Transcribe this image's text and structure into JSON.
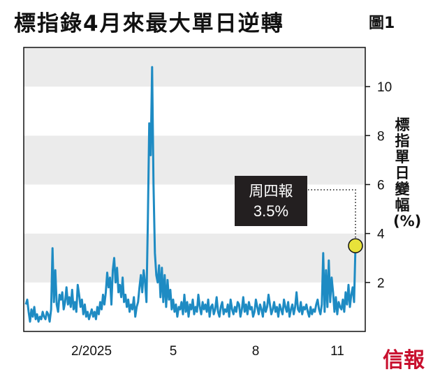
{
  "header": {
    "title": "標指錄4月來最大單日逆轉",
    "figure_label": "圖1"
  },
  "brand": {
    "logo_text": "信報",
    "color": "#c8102e"
  },
  "callout": {
    "line1": "周四報",
    "line2": "3.5%"
  },
  "colors": {
    "line": "#1e8bc3",
    "band": "#ebebeb",
    "marker": "#e8e23a"
  },
  "chart_data": {
    "type": "line",
    "title": "標指錄4月來最大單日逆轉",
    "ylabel": "標指單日變幅(%)",
    "ylim": [
      0,
      11.6
    ],
    "yticks": [
      2,
      4,
      6,
      8,
      10
    ],
    "x_ticks": [
      "2/2025",
      "5",
      "8",
      "11"
    ],
    "grid": "alternating horizontal bands",
    "series": [
      {
        "values": [
          1.1,
          1.3,
          0.8,
          0.4,
          0.9,
          0.6,
          1,
          0.5,
          0.7,
          0.4,
          0.6,
          0.5,
          0.8,
          0.6,
          0.5,
          0.8,
          0.7,
          0.4,
          0.9,
          3.4,
          1.2,
          2.5,
          1.1,
          0.8,
          1.5,
          1.3,
          1.6,
          0.9,
          1.2,
          1.8,
          1.1,
          1.4,
          1,
          1.7,
          0.9,
          1.2,
          0.8,
          1.9,
          1.5,
          1,
          1.3,
          0.7,
          1.1,
          0.6,
          0.8,
          0.5,
          0.7,
          0.9,
          0.6,
          0.8,
          0.5,
          1,
          0.7,
          1.2,
          0.9,
          1.5,
          1.1,
          1.6,
          2.4,
          1.8,
          2.2,
          1.1,
          2.5,
          3,
          2,
          2.6,
          1.6,
          1.9,
          1.4,
          2.2,
          1.2,
          1.5,
          1,
          1.3,
          0.8,
          1.1,
          0.9,
          1.4,
          0.6,
          1,
          1.2,
          1.8,
          2.3,
          1.6,
          2.5,
          2,
          1.2,
          4.5,
          8.5,
          7.2,
          10.8,
          6,
          3.2,
          2.3,
          2,
          2.7,
          1.4,
          2.6,
          1.2,
          2.3,
          1,
          2.1,
          1.3,
          1.7,
          0.9,
          1.3,
          0.8,
          1.1,
          0.6,
          1,
          0.9,
          1.2,
          0.7,
          1.5,
          0.8,
          1.2,
          0.6,
          1.1,
          0.9,
          1.3,
          0.7,
          1,
          0.8,
          1.5,
          1,
          0.7,
          1.2,
          0.9,
          1.1,
          0.8,
          1.3,
          0.6,
          1,
          1.1,
          0.7,
          0.9,
          1.4,
          0.8,
          0.6,
          1,
          1.2,
          0.7,
          0.9,
          0.8,
          1.1,
          0.6,
          1.3,
          0.9,
          0.7,
          1,
          0.8,
          1.2,
          1.1,
          0.6,
          0.9,
          1.4,
          0.8,
          1.1,
          0.7,
          1.2,
          0.9,
          1,
          0.6,
          0.8,
          1.3,
          1,
          0.7,
          1.1,
          0.9,
          0.6,
          1.2,
          0.8,
          1,
          1.5,
          1.1,
          0.7,
          0.9,
          1.2,
          0.8,
          1,
          0.6,
          1.1,
          0.9,
          0.7,
          1.3,
          1,
          0.8,
          1.2,
          0.6,
          0.9,
          1.1,
          0.7,
          1,
          1.6,
          0.9,
          0.8,
          1.2,
          0.7,
          1,
          0.9,
          1.1,
          0.8,
          0.6,
          1,
          0.7,
          0.9,
          0.8,
          1.1,
          1.3,
          0.9,
          0.7,
          1.1,
          3.2,
          0.8,
          2.5,
          1,
          2.9,
          1.2,
          2.2,
          1.6,
          0.8,
          1.4,
          0.7,
          1.2,
          1,
          0.9,
          1.3,
          0.8,
          1.6,
          1.1,
          1.9,
          1,
          1.5,
          1.8,
          1.2,
          3.5
        ]
      }
    ],
    "annotation": {
      "label": "周四報",
      "value": "3.5%",
      "y": 3.5
    }
  }
}
